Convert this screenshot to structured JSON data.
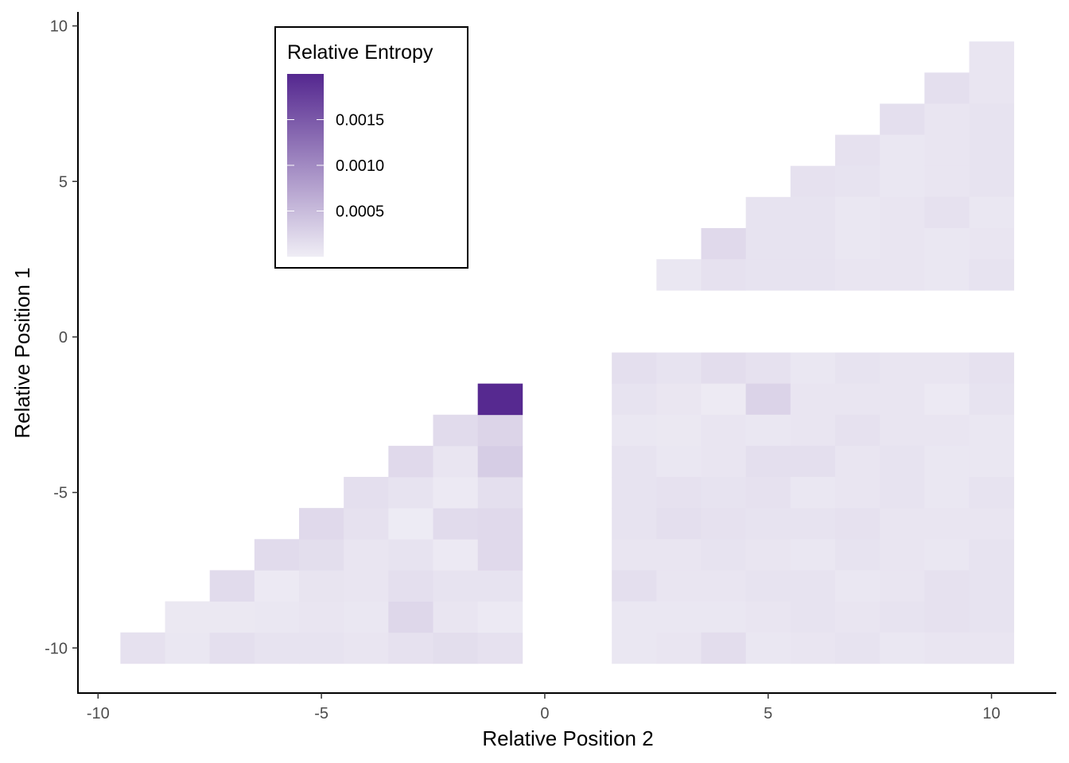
{
  "chart_data": {
    "type": "heatmap",
    "xlabel": "Relative Position 2",
    "ylabel": "Relative Position 1",
    "xlim": [
      -10.45,
      11.45
    ],
    "ylim": [
      -11.45,
      10.45
    ],
    "x_ticks": [
      -10,
      -5,
      0,
      5,
      10
    ],
    "y_ticks": [
      -10,
      -5,
      0,
      5,
      10
    ],
    "x_tick_labels": [
      "-10",
      "-5",
      "0",
      "5",
      "10"
    ],
    "y_tick_labels": [
      "-10",
      "-5",
      "0",
      "5",
      "10"
    ],
    "legend": {
      "title": "Relative Entropy",
      "placement": "top-left",
      "min": 0.0,
      "max": 0.002,
      "breaks": [
        0.0015,
        0.001,
        0.0005
      ],
      "break_labels": [
        "0.0015",
        "0.0010",
        "0.0005"
      ],
      "color_low": "#efedf5",
      "color_high": "#54278f"
    },
    "cells": [
      [
        -9,
        -10,
        0.00012
      ],
      [
        -8,
        -10,
        6e-05
      ],
      [
        -7,
        -10,
        0.00014
      ],
      [
        -6,
        -10,
        0.0001
      ],
      [
        -5,
        -10,
        0.0001
      ],
      [
        -4,
        -10,
        8e-05
      ],
      [
        -3,
        -10,
        0.00012
      ],
      [
        -2,
        -10,
        0.00015
      ],
      [
        -1,
        -10,
        0.00012
      ],
      [
        -8,
        -9,
        5e-05
      ],
      [
        -7,
        -9,
        5e-05
      ],
      [
        -6,
        -9,
        6e-05
      ],
      [
        -5,
        -9,
        8e-05
      ],
      [
        -4,
        -9,
        6e-05
      ],
      [
        -3,
        -9,
        0.00022
      ],
      [
        -2,
        -9,
        8e-05
      ],
      [
        -1,
        -9,
        4e-05
      ],
      [
        -7,
        -8,
        0.00018
      ],
      [
        -6,
        -8,
        4e-05
      ],
      [
        -5,
        -8,
        9e-05
      ],
      [
        -4,
        -8,
        8e-05
      ],
      [
        -3,
        -8,
        0.00014
      ],
      [
        -2,
        -8,
        0.0001
      ],
      [
        -1,
        -8,
        0.0001
      ],
      [
        -6,
        -7,
        0.00018
      ],
      [
        -5,
        -7,
        0.00015
      ],
      [
        -4,
        -7,
        8e-05
      ],
      [
        -3,
        -7,
        0.0001
      ],
      [
        -2,
        -7,
        4e-05
      ],
      [
        -1,
        -7,
        0.0002
      ],
      [
        -5,
        -6,
        0.0002
      ],
      [
        -4,
        -6,
        0.00012
      ],
      [
        -3,
        -6,
        2e-05
      ],
      [
        -2,
        -6,
        0.00018
      ],
      [
        -1,
        -6,
        0.0002
      ],
      [
        -4,
        -5,
        0.00014
      ],
      [
        -3,
        -5,
        0.0001
      ],
      [
        -2,
        -5,
        4e-05
      ],
      [
        -1,
        -5,
        0.00014
      ],
      [
        -3,
        -4,
        0.0002
      ],
      [
        -2,
        -4,
        8e-05
      ],
      [
        -1,
        -4,
        0.00032
      ],
      [
        -2,
        -3,
        0.00018
      ],
      [
        -1,
        -3,
        0.00025
      ],
      [
        -1,
        -2,
        0.00198
      ],
      [
        2,
        -1,
        0.00014
      ],
      [
        3,
        -1,
        0.0001
      ],
      [
        4,
        -1,
        0.00016
      ],
      [
        5,
        -1,
        0.00012
      ],
      [
        6,
        -1,
        6e-05
      ],
      [
        7,
        -1,
        0.0001
      ],
      [
        8,
        -1,
        8e-05
      ],
      [
        9,
        -1,
        8e-05
      ],
      [
        10,
        -1,
        0.00012
      ],
      [
        2,
        -2,
        0.0001
      ],
      [
        3,
        -2,
        7e-05
      ],
      [
        4,
        -2,
        3e-05
      ],
      [
        5,
        -2,
        0.00026
      ],
      [
        6,
        -2,
        8e-05
      ],
      [
        7,
        -2,
        8e-05
      ],
      [
        8,
        -2,
        8e-05
      ],
      [
        9,
        -2,
        4e-05
      ],
      [
        10,
        -2,
        0.0001
      ],
      [
        2,
        -3,
        6e-05
      ],
      [
        3,
        -3,
        5e-05
      ],
      [
        4,
        -3,
        8e-05
      ],
      [
        5,
        -3,
        6e-05
      ],
      [
        6,
        -3,
        8e-05
      ],
      [
        7,
        -3,
        0.00012
      ],
      [
        8,
        -3,
        8e-05
      ],
      [
        9,
        -3,
        8e-05
      ],
      [
        10,
        -3,
        6e-05
      ],
      [
        2,
        -4,
        0.0001
      ],
      [
        3,
        -4,
        6e-05
      ],
      [
        4,
        -4,
        8e-05
      ],
      [
        5,
        -4,
        0.00014
      ],
      [
        6,
        -4,
        0.00014
      ],
      [
        7,
        -4,
        8e-05
      ],
      [
        8,
        -4,
        0.0001
      ],
      [
        9,
        -4,
        6e-05
      ],
      [
        10,
        -4,
        6e-05
      ],
      [
        2,
        -5,
        0.0001
      ],
      [
        3,
        -5,
        0.00012
      ],
      [
        4,
        -5,
        0.0001
      ],
      [
        5,
        -5,
        0.00012
      ],
      [
        6,
        -5,
        6e-05
      ],
      [
        7,
        -5,
        8e-05
      ],
      [
        8,
        -5,
        0.0001
      ],
      [
        9,
        -5,
        6e-05
      ],
      [
        10,
        -5,
        0.0001
      ],
      [
        2,
        -6,
        0.0001
      ],
      [
        3,
        -6,
        0.00014
      ],
      [
        4,
        -6,
        0.00012
      ],
      [
        5,
        -6,
        0.0001
      ],
      [
        6,
        -6,
        0.0001
      ],
      [
        7,
        -6,
        0.00012
      ],
      [
        8,
        -6,
        8e-05
      ],
      [
        9,
        -6,
        8e-05
      ],
      [
        10,
        -6,
        8e-05
      ],
      [
        2,
        -7,
        8e-05
      ],
      [
        3,
        -7,
        8e-05
      ],
      [
        4,
        -7,
        0.0001
      ],
      [
        5,
        -7,
        8e-05
      ],
      [
        6,
        -7,
        6e-05
      ],
      [
        7,
        -7,
        0.0001
      ],
      [
        8,
        -7,
        8e-05
      ],
      [
        9,
        -7,
        6e-05
      ],
      [
        10,
        -7,
        0.0001
      ],
      [
        2,
        -8,
        0.00014
      ],
      [
        3,
        -8,
        8e-05
      ],
      [
        4,
        -8,
        8e-05
      ],
      [
        5,
        -8,
        0.0001
      ],
      [
        6,
        -8,
        0.0001
      ],
      [
        7,
        -8,
        6e-05
      ],
      [
        8,
        -8,
        8e-05
      ],
      [
        9,
        -8,
        0.00012
      ],
      [
        10,
        -8,
        0.0001
      ],
      [
        2,
        -9,
        6e-05
      ],
      [
        3,
        -9,
        6e-05
      ],
      [
        4,
        -9,
        6e-05
      ],
      [
        5,
        -9,
        8e-05
      ],
      [
        6,
        -9,
        0.0001
      ],
      [
        7,
        -9,
        8e-05
      ],
      [
        8,
        -9,
        0.0001
      ],
      [
        9,
        -9,
        0.00012
      ],
      [
        10,
        -9,
        0.0001
      ],
      [
        2,
        -10,
        6e-05
      ],
      [
        3,
        -10,
        8e-05
      ],
      [
        4,
        -10,
        0.00016
      ],
      [
        5,
        -10,
        6e-05
      ],
      [
        6,
        -10,
        8e-05
      ],
      [
        7,
        -10,
        0.0001
      ],
      [
        8,
        -10,
        6e-05
      ],
      [
        9,
        -10,
        8e-05
      ],
      [
        10,
        -10,
        8e-05
      ],
      [
        10,
        9,
        8e-05
      ],
      [
        9,
        8,
        0.00014
      ],
      [
        10,
        8,
        8e-05
      ],
      [
        8,
        7,
        0.00014
      ],
      [
        9,
        7,
        8e-05
      ],
      [
        10,
        7,
        0.0001
      ],
      [
        7,
        6,
        0.00012
      ],
      [
        8,
        6,
        6e-05
      ],
      [
        9,
        6,
        8e-05
      ],
      [
        10,
        6,
        0.0001
      ],
      [
        6,
        5,
        0.00012
      ],
      [
        7,
        5,
        0.0001
      ],
      [
        8,
        5,
        6e-05
      ],
      [
        9,
        5,
        8e-05
      ],
      [
        10,
        5,
        0.0001
      ],
      [
        5,
        4,
        0.0001
      ],
      [
        6,
        4,
        0.0001
      ],
      [
        7,
        4,
        6e-05
      ],
      [
        8,
        4,
        8e-05
      ],
      [
        9,
        4,
        0.00012
      ],
      [
        10,
        4,
        6e-05
      ],
      [
        4,
        3,
        0.0002
      ],
      [
        5,
        3,
        0.0001
      ],
      [
        6,
        3,
        0.0001
      ],
      [
        7,
        3,
        6e-05
      ],
      [
        8,
        3,
        8e-05
      ],
      [
        9,
        3,
        6e-05
      ],
      [
        10,
        3,
        8e-05
      ],
      [
        3,
        2,
        6e-05
      ],
      [
        4,
        2,
        0.00012
      ],
      [
        5,
        2,
        0.0001
      ],
      [
        6,
        2,
        0.0001
      ],
      [
        7,
        2,
        8e-05
      ],
      [
        8,
        2,
        8e-05
      ],
      [
        9,
        2,
        6e-05
      ],
      [
        10,
        2,
        0.0001
      ]
    ]
  }
}
